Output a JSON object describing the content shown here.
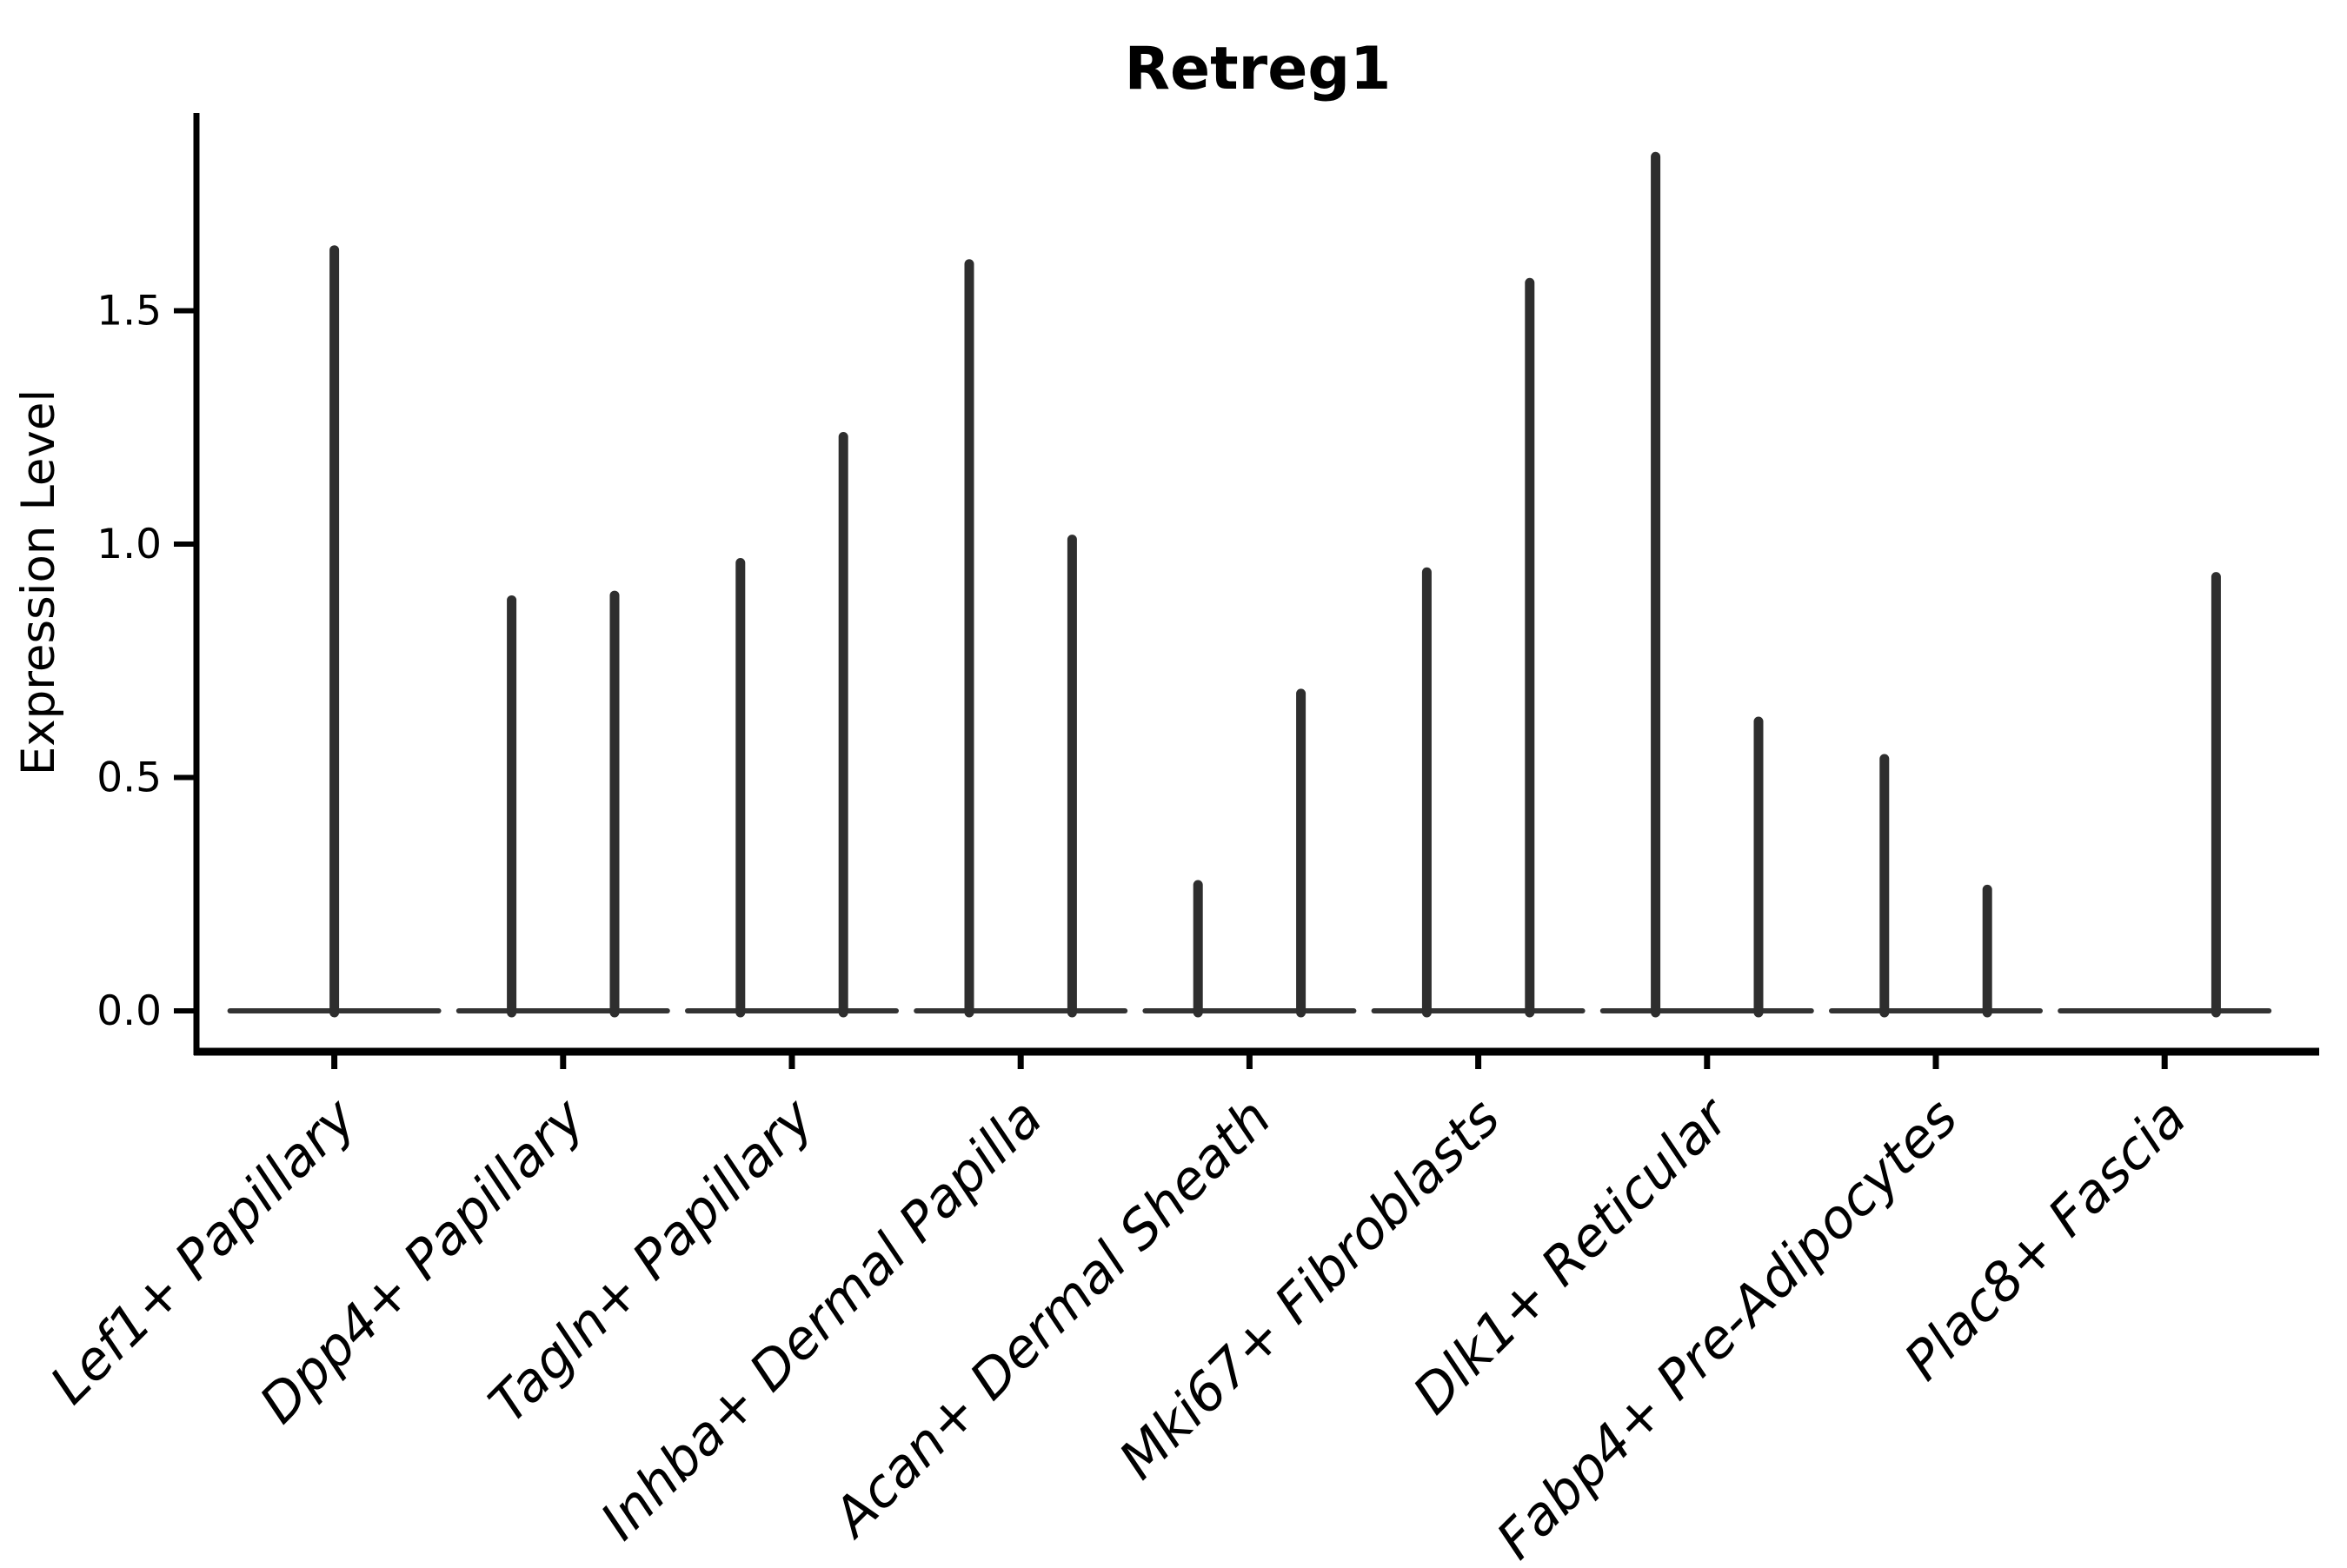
{
  "chart_data": {
    "type": "violin",
    "title": "Retreg1",
    "xlabel": "",
    "ylabel": "Expression Level",
    "ylim": [
      -0.09,
      1.92
    ],
    "yticks": [
      "0.0",
      "0.5",
      "1.0",
      "1.5"
    ],
    "ytick_values": [
      0.0,
      0.5,
      1.0,
      1.5
    ],
    "grid": false,
    "legend": "none",
    "baseline_value": 0.0,
    "colors": {
      "violin": "#2e2e2e",
      "baseline": "#333333",
      "axis": "#000000",
      "background": "#ffffff"
    },
    "categories": [
      "Lef1+ Papillary",
      "Dpp4+ Papillary",
      "Tagln+ Papillary",
      "Inhba+ Dermal Papilla",
      "Acan+ Dermal Sheath",
      "Mki67+ Fibroblasts",
      "Dlk1+ Reticular",
      "Fabp4+ Pre-Adipocytes",
      "Plac8+ Fascia"
    ],
    "series": [
      {
        "category": "Lef1+ Papillary",
        "violins": [
          {
            "offset": 0,
            "peak": 1.63
          }
        ]
      },
      {
        "category": "Dpp4+ Papillary",
        "violins": [
          {
            "offset": -1,
            "peak": 0.88
          },
          {
            "offset": 1,
            "peak": 0.89
          }
        ]
      },
      {
        "category": "Tagln+ Papillary",
        "violins": [
          {
            "offset": -1,
            "peak": 0.96
          },
          {
            "offset": 1,
            "peak": 1.23
          }
        ]
      },
      {
        "category": "Inhba+ Dermal Papilla",
        "violins": [
          {
            "offset": -1,
            "peak": 1.6
          },
          {
            "offset": 1,
            "peak": 1.01
          }
        ]
      },
      {
        "category": "Acan+ Dermal Sheath",
        "violins": [
          {
            "offset": -1,
            "peak": 0.27
          },
          {
            "offset": 1,
            "peak": 0.68
          }
        ]
      },
      {
        "category": "Mki67+ Fibroblasts",
        "violins": [
          {
            "offset": -1,
            "peak": 0.94
          },
          {
            "offset": 1,
            "peak": 1.56
          }
        ]
      },
      {
        "category": "Dlk1+ Reticular",
        "violins": [
          {
            "offset": -1,
            "peak": 1.83
          },
          {
            "offset": 1,
            "peak": 0.62
          }
        ]
      },
      {
        "category": "Fabp4+ Pre-Adipocytes",
        "violins": [
          {
            "offset": -1,
            "peak": 0.54
          },
          {
            "offset": 1,
            "peak": 0.26
          }
        ]
      },
      {
        "category": "Plac8+ Fascia",
        "violins": [
          {
            "offset": 1,
            "peak": 0.93
          }
        ]
      }
    ]
  }
}
